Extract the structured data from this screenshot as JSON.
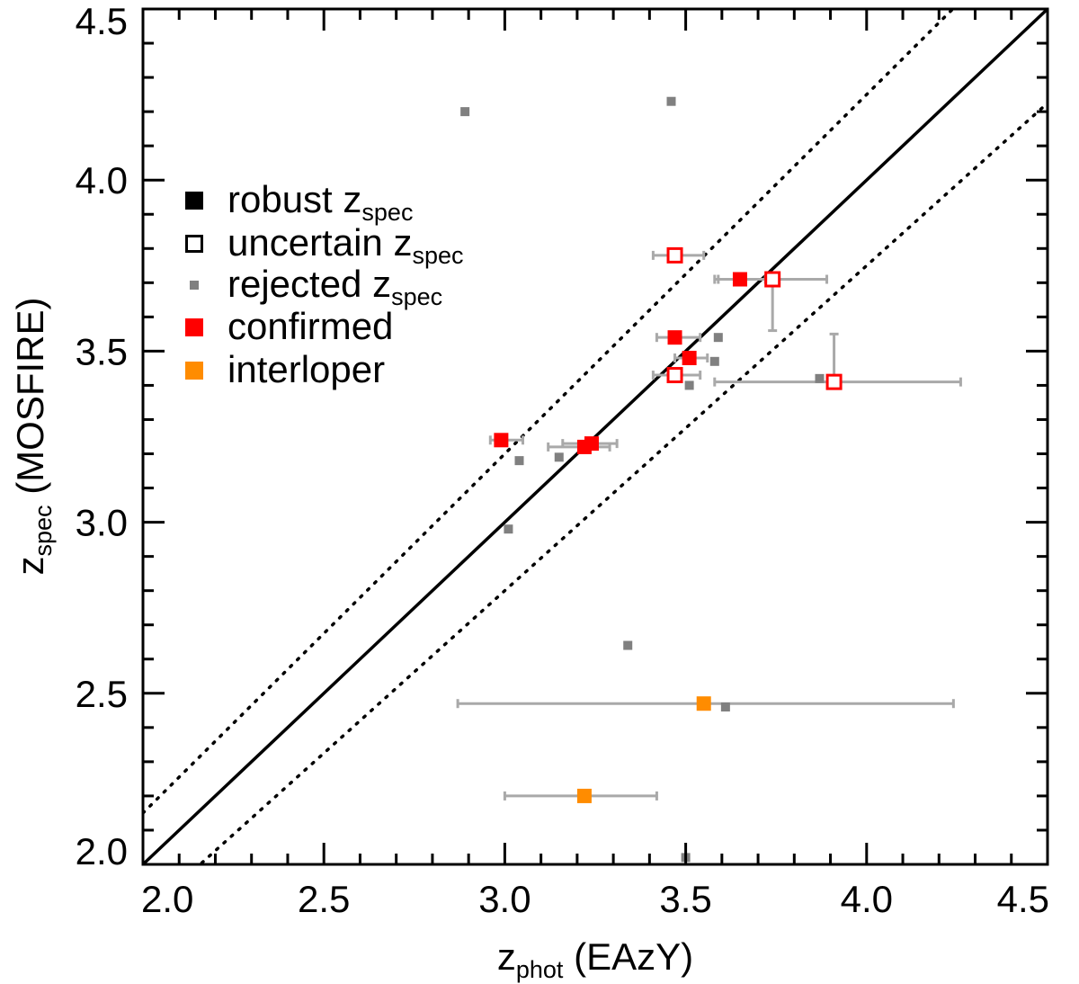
{
  "chart_data": {
    "type": "scatter",
    "title": "",
    "xlabel": {
      "main": "z",
      "sub": "phot",
      "suffix": " (EAzY)"
    },
    "ylabel": {
      "main": "z",
      "sub": "spec",
      "suffix": " (MOSFIRE)"
    },
    "xlim": [
      2.0,
      4.5
    ],
    "ylim": [
      2.0,
      4.5
    ],
    "xticks": [
      "2.0",
      "2.5",
      "3.0",
      "3.5",
      "4.0",
      "4.5"
    ],
    "yticks": [
      "2.0",
      "2.5",
      "3.0",
      "3.5",
      "4.0",
      "4.5"
    ],
    "one_to_one_line": {
      "slope": 1,
      "offset": 0,
      "style": "solid"
    },
    "scatter_bounds": {
      "factor": 0.05,
      "style": "dotted",
      "form": "z_spec = z_phot ± 0.05(1+z_phot)"
    },
    "legend": [
      {
        "label": "robust z",
        "sub": "spec",
        "marker": "filled-square",
        "color": "#000000"
      },
      {
        "label": "uncertain z",
        "sub": "spec",
        "marker": "open-square",
        "color": "#000000"
      },
      {
        "label": "rejected z",
        "sub": "spec",
        "marker": "small-square",
        "color": "#808080"
      },
      {
        "label": "confirmed",
        "sub": "",
        "marker": "filled-square",
        "color": "#ff0000"
      },
      {
        "label": "interloper",
        "sub": "",
        "marker": "filled-square",
        "color": "#ff8c00"
      }
    ],
    "colors": {
      "confirmed": "#ff0000",
      "interloper": "#ff8c00",
      "rejected": "#808080",
      "errorbar": "#a9a9a9"
    },
    "series": [
      {
        "name": "confirmed robust",
        "points": [
          {
            "x": 2.99,
            "y": 3.24,
            "xerr": [
              2.96,
              3.05
            ]
          },
          {
            "x": 3.22,
            "y": 3.22,
            "xerr": [
              3.12,
              3.29
            ]
          },
          {
            "x": 3.24,
            "y": 3.23,
            "xerr": [
              3.16,
              3.31
            ]
          },
          {
            "x": 3.47,
            "y": 3.54,
            "xerr": [
              3.42,
              3.54
            ]
          },
          {
            "x": 3.51,
            "y": 3.48,
            "xerr": [
              3.47,
              3.56
            ]
          },
          {
            "x": 3.65,
            "y": 3.71,
            "xerr": [
              3.59,
              3.72
            ]
          }
        ]
      },
      {
        "name": "confirmed uncertain",
        "points": [
          {
            "x": 3.47,
            "y": 3.78,
            "xerr": [
              3.41,
              3.55
            ]
          },
          {
            "x": 3.74,
            "y": 3.71,
            "xerr": [
              3.58,
              3.89
            ],
            "yerr": [
              3.56,
              3.71
            ]
          },
          {
            "x": 3.47,
            "y": 3.43,
            "xerr": [
              3.41,
              3.54
            ]
          },
          {
            "x": 3.91,
            "y": 3.41,
            "xerr": [
              3.58,
              4.26
            ],
            "yerr": [
              3.41,
              3.55
            ]
          }
        ]
      },
      {
        "name": "interloper",
        "points": [
          {
            "x": 3.55,
            "y": 2.47,
            "xerr": [
              2.87,
              4.24
            ]
          },
          {
            "x": 3.22,
            "y": 2.2,
            "xerr": [
              3.0,
              3.42
            ]
          }
        ]
      },
      {
        "name": "rejected",
        "points": [
          {
            "x": 2.89,
            "y": 4.2
          },
          {
            "x": 3.46,
            "y": 4.23
          },
          {
            "x": 3.59,
            "y": 3.54
          },
          {
            "x": 3.58,
            "y": 3.47
          },
          {
            "x": 3.51,
            "y": 3.4
          },
          {
            "x": 3.87,
            "y": 3.42
          },
          {
            "x": 3.04,
            "y": 3.18
          },
          {
            "x": 3.15,
            "y": 3.19
          },
          {
            "x": 3.01,
            "y": 2.98
          },
          {
            "x": 3.34,
            "y": 2.64
          },
          {
            "x": 3.61,
            "y": 2.46
          },
          {
            "x": 3.5,
            "y": 2.02
          }
        ]
      }
    ]
  }
}
